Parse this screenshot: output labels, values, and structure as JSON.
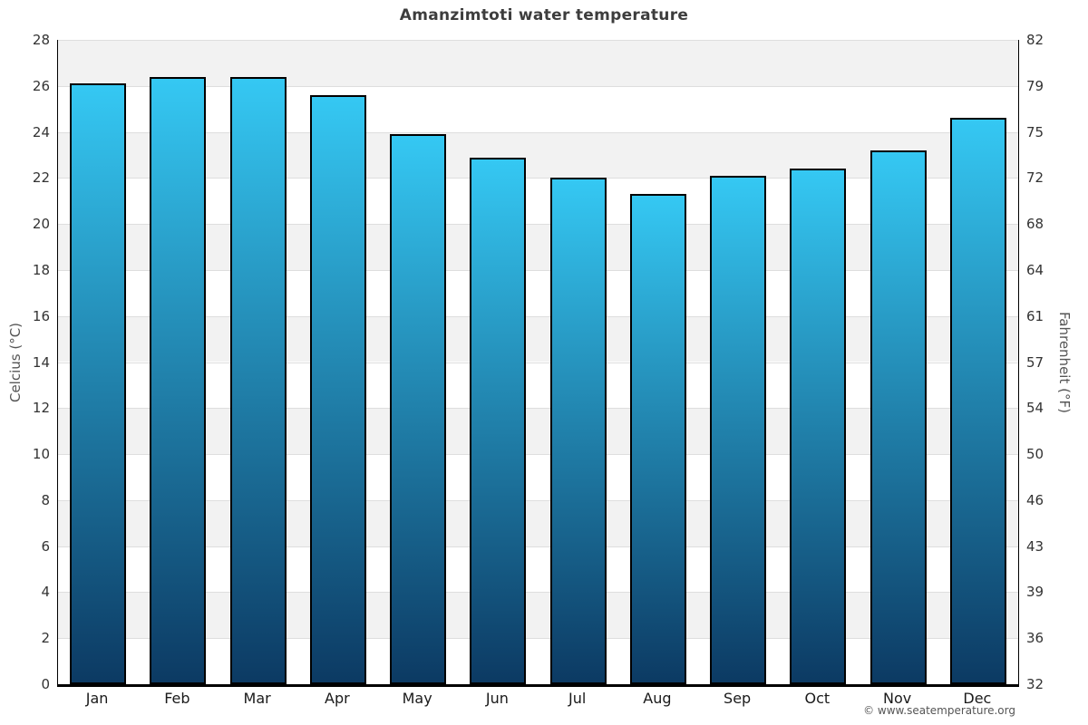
{
  "footer": {
    "copyright": "© www.seatemperature.org"
  },
  "chart_data": {
    "type": "bar",
    "title": "Amanzimtoti water temperature",
    "categories": [
      "Jan",
      "Feb",
      "Mar",
      "Apr",
      "May",
      "Jun",
      "Jul",
      "Aug",
      "Sep",
      "Oct",
      "Nov",
      "Dec"
    ],
    "values": [
      26.1,
      26.4,
      26.4,
      25.6,
      23.9,
      22.9,
      22.0,
      21.3,
      22.1,
      22.4,
      23.2,
      24.6
    ],
    "ylabel_left": "Celcius (°C)",
    "ylabel_right": "Fahrenheit (°F)",
    "ylim_celsius": [
      0,
      28
    ],
    "yticks_celsius": [
      28,
      26,
      24,
      22,
      20,
      18,
      16,
      14,
      12,
      10,
      8,
      6,
      4,
      2,
      0
    ],
    "yticks_fahrenheit": [
      82,
      79,
      75,
      72,
      68,
      64,
      61,
      57,
      54,
      50,
      46,
      43,
      39,
      36,
      32
    ],
    "grid": "alternating horizontal bands",
    "legend": "none",
    "colors": {
      "bar_top": "#35c8f3",
      "bar_bottom": "#0c3a63",
      "bar_border": "#000000",
      "band_gray": "#f2f2f2",
      "band_white": "#ffffff",
      "axis_line": "#000000",
      "title_text": "#3d3d3d",
      "tick_text": "#333333",
      "axis_title_text": "#555555"
    }
  }
}
